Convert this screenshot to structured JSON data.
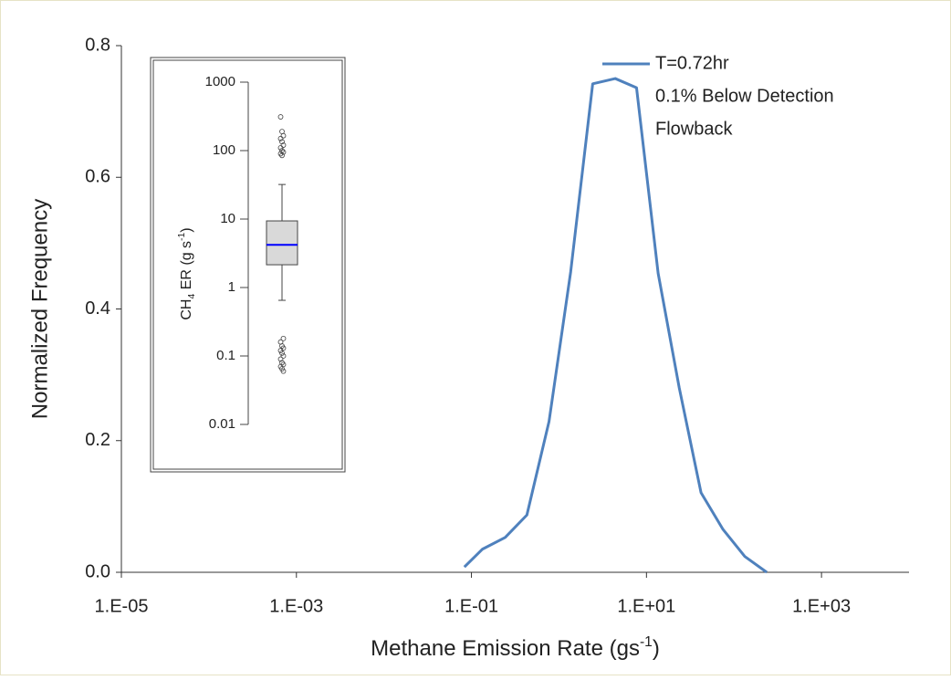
{
  "chart_data": [
    {
      "type": "line",
      "xscale": "log",
      "ylabel": "Normalized Frequency",
      "xlabel_parts": [
        {
          "text": "Methane Emission Rate (gs"
        },
        {
          "text": "-1",
          "script": "super"
        },
        {
          "text": ")"
        }
      ],
      "x": [
        0.083,
        0.133,
        0.243,
        0.43,
        0.77,
        1.36,
        2.43,
        4.4,
        7.7,
        13.6,
        23.7,
        42,
        75,
        133,
        237
      ],
      "series": [
        {
          "name": "T=0.72hr",
          "color": "#4f81bd",
          "values": [
            0.008,
            0.035,
            0.053,
            0.087,
            0.229,
            0.456,
            0.742,
            0.75,
            0.736,
            0.454,
            0.28,
            0.121,
            0.065,
            0.024,
            0.0
          ]
        }
      ],
      "annotations": [
        "0.1% Below Detection",
        "Flowback"
      ],
      "legend": "top-right",
      "xlim": [
        1e-05,
        10000
      ],
      "xticks": [
        {
          "value": 1e-05,
          "label": "1.E-05"
        },
        {
          "value": 0.001,
          "label": "1.E-03"
        },
        {
          "value": 0.1,
          "label": "1.E-01"
        },
        {
          "value": 10,
          "label": "1.E+01"
        },
        {
          "value": 1000,
          "label": "1.E+03"
        }
      ],
      "ylim": [
        0,
        0.8
      ],
      "yticks": [
        {
          "value": 0,
          "label": "0.0"
        },
        0.2,
        0.4,
        0.6,
        0.8
      ]
    },
    {
      "type": "box",
      "yscale": "log",
      "ylabel_parts": [
        {
          "text": "CH"
        },
        {
          "text": "4",
          "script": "sub"
        },
        {
          "text": " ER (g s"
        },
        {
          "text": "-1",
          "script": "super"
        },
        {
          "text": ")"
        }
      ],
      "box": {
        "whisker_low": 0.65,
        "q1": 2.15,
        "median": 4.2,
        "q3": 9.4,
        "whisker_high": 32,
        "outliers": [
          311,
          190,
          165,
          150,
          135,
          120,
          110,
          100,
          95,
          90,
          85,
          0.18,
          0.16,
          0.14,
          0.13,
          0.12,
          0.11,
          0.1,
          0.09,
          0.08,
          0.075,
          0.07,
          0.065,
          0.06
        ]
      },
      "box_color": "#d9d9d9",
      "median_color": "#0000ff",
      "ylim": [
        0.01,
        1000
      ],
      "yticks": [
        1000,
        100,
        10,
        1,
        0.1,
        0.01
      ]
    }
  ]
}
